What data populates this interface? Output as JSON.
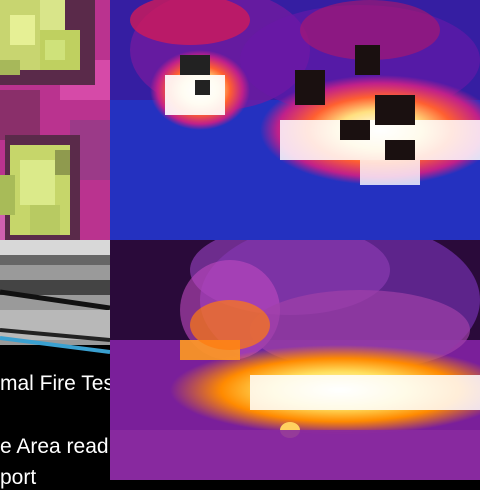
{
  "collage": {
    "tiles": [
      {
        "name": "pixelated-thermal-closeup",
        "palette": [
          "#c6d66a",
          "#9f5a8a",
          "#c43a9a",
          "#e0f08a"
        ]
      },
      {
        "name": "thermal-fire-top",
        "palette": [
          "#1a1a9a",
          "#4a1ab0",
          "#e0204a",
          "#ffe070",
          "#ffffff",
          "#222"
        ]
      },
      {
        "name": "grayscale-photo-with-caption",
        "palette": [
          "#bbbbbb",
          "#555555",
          "#3aa0d0"
        ]
      },
      {
        "name": "thermal-fire-bottom",
        "palette": [
          "#2a0a40",
          "#8a2aa0",
          "#ff8a00",
          "#ffe060",
          "#ffffff"
        ]
      }
    ],
    "caption": {
      "line1": "mal Fire Test.",
      "line2": "e Area reading",
      "line3": "port"
    }
  }
}
